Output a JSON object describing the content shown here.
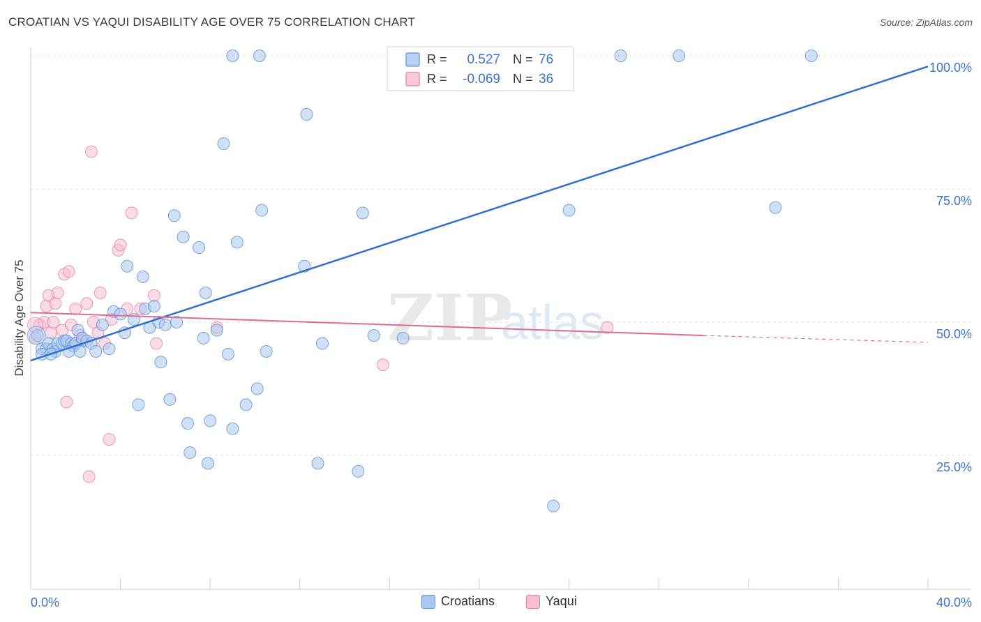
{
  "title": "CROATIAN VS YAQUI DISABILITY AGE OVER 75 CORRELATION CHART",
  "source": "Source: ZipAtlas.com",
  "watermark": {
    "zip": "ZIP",
    "atlas": "atlas"
  },
  "colors": {
    "blue": "#5b8fd6",
    "blue_fill": "#aac8ef",
    "blue_line": "#2e6fd0",
    "pink": "#e57aa0",
    "pink_fill": "#f6bfd3",
    "pink_line": "#e06a93",
    "axis_label": "#3d73c8"
  },
  "legend_box": {
    "rows": [
      {
        "r_label": "R =",
        "r_value": "0.527",
        "n_label": "N =",
        "n_value": "76"
      },
      {
        "r_label": "R =",
        "r_value": "-0.069",
        "n_label": "N =",
        "n_value": "36"
      }
    ]
  },
  "chart_data": {
    "type": "scatter",
    "xlabel": "",
    "ylabel": "Disability Age Over 75",
    "xlim": [
      0,
      40
    ],
    "ylim": [
      0,
      105
    ],
    "x_tick_labels": [
      "0.0%",
      "40.0%"
    ],
    "y_ticks": [
      25,
      50,
      75,
      100
    ],
    "y_tick_labels": [
      "25.0%",
      "50.0%",
      "75.0%",
      "100.0%"
    ],
    "grid": true,
    "legend_position": "bottom",
    "series": [
      {
        "name": "Croatians",
        "r": 0.527,
        "n": 76,
        "trend": {
          "x0": 0,
          "y0": 42.8,
          "x1": 40,
          "y1": 98.0
        },
        "points": [
          [
            0.3,
            47.5
          ],
          [
            0.5,
            45
          ],
          [
            0.7,
            45
          ],
          [
            0.8,
            46
          ],
          [
            1.0,
            45
          ],
          [
            1.1,
            44.5
          ],
          [
            1.2,
            46
          ],
          [
            1.4,
            46
          ],
          [
            1.5,
            46.5
          ],
          [
            1.6,
            46.5
          ],
          [
            1.8,
            46
          ],
          [
            1.9,
            45.5
          ],
          [
            2.0,
            46
          ],
          [
            2.1,
            48.5
          ],
          [
            2.3,
            47
          ],
          [
            2.5,
            46.5
          ],
          [
            2.7,
            46
          ],
          [
            2.9,
            44.5
          ],
          [
            3.2,
            49.5
          ],
          [
            3.5,
            45
          ],
          [
            3.7,
            52
          ],
          [
            4.0,
            51.5
          ],
          [
            4.2,
            48
          ],
          [
            4.3,
            60.5
          ],
          [
            4.6,
            50.5
          ],
          [
            4.8,
            34.5
          ],
          [
            5.0,
            58.5
          ],
          [
            5.1,
            52.5
          ],
          [
            5.3,
            49
          ],
          [
            5.5,
            53
          ],
          [
            5.7,
            50
          ],
          [
            5.8,
            42.5
          ],
          [
            6.0,
            49.5
          ],
          [
            6.2,
            35.5
          ],
          [
            6.4,
            70
          ],
          [
            6.5,
            50
          ],
          [
            6.8,
            66
          ],
          [
            7.0,
            31
          ],
          [
            7.1,
            25.5
          ],
          [
            7.5,
            64
          ],
          [
            7.7,
            47
          ],
          [
            7.8,
            55.5
          ],
          [
            7.9,
            23.5
          ],
          [
            8.0,
            31.5
          ],
          [
            8.3,
            48.5
          ],
          [
            8.6,
            83.5
          ],
          [
            8.8,
            44
          ],
          [
            9.0,
            30
          ],
          [
            9.2,
            65
          ],
          [
            9.6,
            34.5
          ],
          [
            9.0,
            100
          ],
          [
            10.1,
            37.5
          ],
          [
            10.3,
            71
          ],
          [
            10.5,
            44.5
          ],
          [
            10.2,
            100
          ],
          [
            12.3,
            89
          ],
          [
            12.2,
            60.5
          ],
          [
            12.8,
            23.5
          ],
          [
            13.0,
            46
          ],
          [
            14.6,
            22
          ],
          [
            14.8,
            70.5
          ],
          [
            15.3,
            47.5
          ],
          [
            16.6,
            47
          ],
          [
            17.9,
            100
          ],
          [
            19.0,
            97
          ],
          [
            20.8,
            100
          ],
          [
            23.3,
            15.5
          ],
          [
            24.0,
            71
          ],
          [
            26.3,
            100
          ],
          [
            28.9,
            100
          ],
          [
            33.2,
            71.5
          ],
          [
            34.8,
            100
          ],
          [
            0.5,
            44
          ],
          [
            0.9,
            44
          ],
          [
            1.7,
            44.5
          ],
          [
            2.2,
            44.5
          ]
        ]
      },
      {
        "name": "Yaqui",
        "r": -0.069,
        "n": 36,
        "trend": {
          "x0": 0,
          "y0": 51.8,
          "x1": 30.0,
          "y1": 47.5,
          "x2": 40,
          "y2": 46.2
        },
        "points": [
          [
            0.2,
            47
          ],
          [
            0.4,
            49.5
          ],
          [
            0.6,
            50
          ],
          [
            0.7,
            53
          ],
          [
            0.8,
            55
          ],
          [
            0.9,
            48
          ],
          [
            1.0,
            50
          ],
          [
            1.1,
            53.5
          ],
          [
            1.2,
            55.5
          ],
          [
            1.4,
            48.5
          ],
          [
            1.5,
            59
          ],
          [
            1.6,
            35
          ],
          [
            1.7,
            59.5
          ],
          [
            1.8,
            49.5
          ],
          [
            2.0,
            52.5
          ],
          [
            2.2,
            47.5
          ],
          [
            2.3,
            46.5
          ],
          [
            2.5,
            53.5
          ],
          [
            2.6,
            21
          ],
          [
            2.7,
            82
          ],
          [
            2.8,
            50
          ],
          [
            3.0,
            48
          ],
          [
            3.1,
            55.5
          ],
          [
            3.3,
            46
          ],
          [
            3.5,
            28
          ],
          [
            3.6,
            50.5
          ],
          [
            3.9,
            63.5
          ],
          [
            4.0,
            64.5
          ],
          [
            4.3,
            52.5
          ],
          [
            4.5,
            70.5
          ],
          [
            4.9,
            52.5
          ],
          [
            5.5,
            55
          ],
          [
            5.6,
            46
          ],
          [
            8.3,
            49
          ],
          [
            15.7,
            42
          ],
          [
            25.7,
            49
          ]
        ]
      }
    ]
  },
  "bottom_legend": [
    {
      "label": "Croatians"
    },
    {
      "label": "Yaqui"
    }
  ]
}
